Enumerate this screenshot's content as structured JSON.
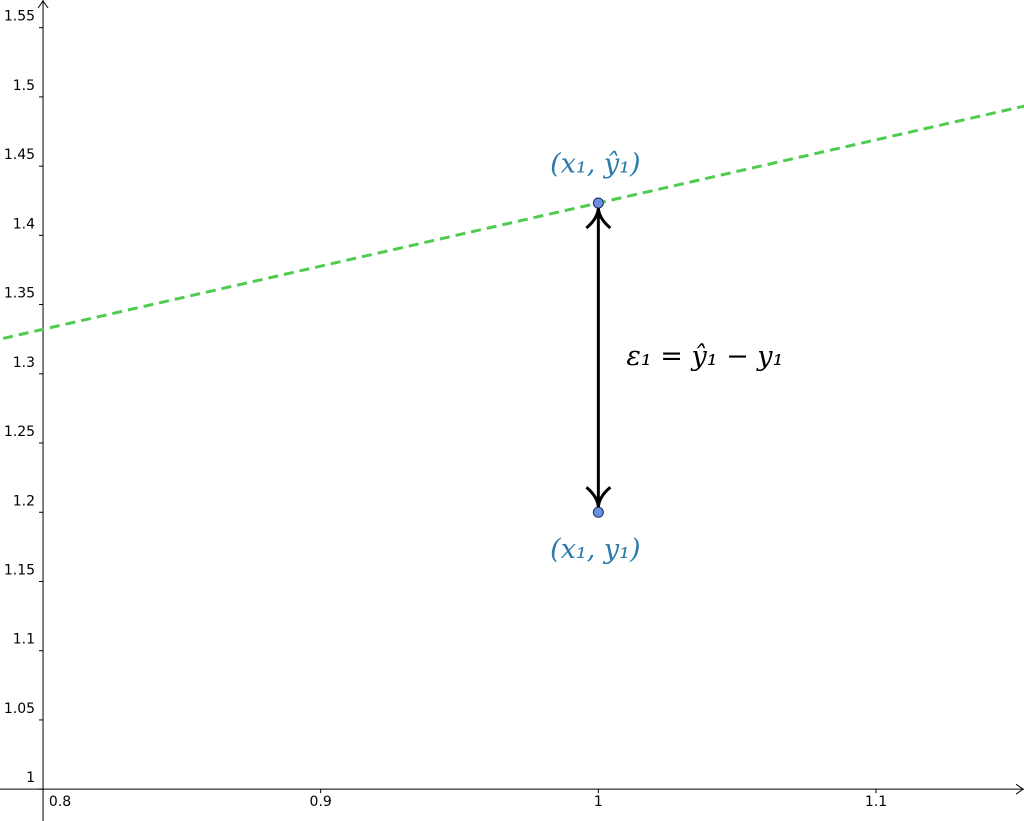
{
  "chart_data": {
    "type": "scatter",
    "xlim": [
      0.7845,
      1.1533
    ],
    "ylim": [
      0.977,
      1.57
    ],
    "xticks": [
      0.8,
      0.9,
      1,
      1.1
    ],
    "yticks": [
      1,
      1.05,
      1.1,
      1.15,
      1.2,
      1.25,
      1.3,
      1.35,
      1.4,
      1.45,
      1.5,
      1.55
    ],
    "line": {
      "color": "#4fcc4f",
      "x": [
        0.78,
        1.16
      ],
      "y": [
        1.323,
        1.4964
      ]
    },
    "points": {
      "color": "#6b8fe0",
      "x": [
        1,
        1
      ],
      "y": [
        1.4234,
        1.2
      ],
      "labels": [
        "(x₁, ŷ₁)",
        "(x₁, y₁)"
      ],
      "label_color": "#2a7bab"
    },
    "annotation": "ε₁ = ŷ₁ − y₁"
  }
}
